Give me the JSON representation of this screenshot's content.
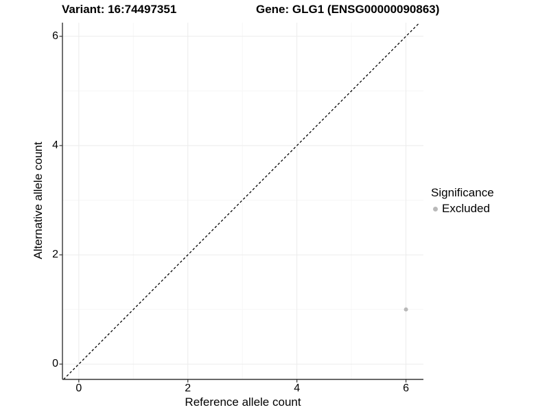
{
  "chart_data": {
    "type": "scatter",
    "titles": {
      "left": "Variant: 16:74497351",
      "right": "Gene: GLG1 (ENSG00000090863)"
    },
    "xlabel": "Reference allele count",
    "ylabel": "Alternative allele count",
    "x_ticks": [
      0,
      2,
      4,
      6
    ],
    "y_ticks": [
      0,
      2,
      4,
      6
    ],
    "x_minor_ticks": [
      1,
      3,
      5
    ],
    "y_minor_ticks": [
      1,
      3,
      5
    ],
    "xlim": [
      -0.3,
      6.32
    ],
    "ylim": [
      -0.28,
      6.25
    ],
    "grid": "major+minor",
    "identity_line": {
      "equation": "y = x",
      "style": "dashed",
      "color": "#000000"
    },
    "series": [
      {
        "name": "Excluded",
        "color": "#b9b9b9",
        "points": [
          {
            "x": 6,
            "y": 1
          }
        ]
      }
    ],
    "legend": {
      "title": "Significance",
      "position": "right",
      "entries": [
        {
          "label": "Excluded",
          "color": "#b9b9b9",
          "marker": "circle"
        }
      ]
    },
    "colors": {
      "background": "#ffffff",
      "grid_major": "#ebebeb",
      "grid_minor": "#f5f5f5",
      "axis": "#333333",
      "text": "#000000"
    }
  }
}
